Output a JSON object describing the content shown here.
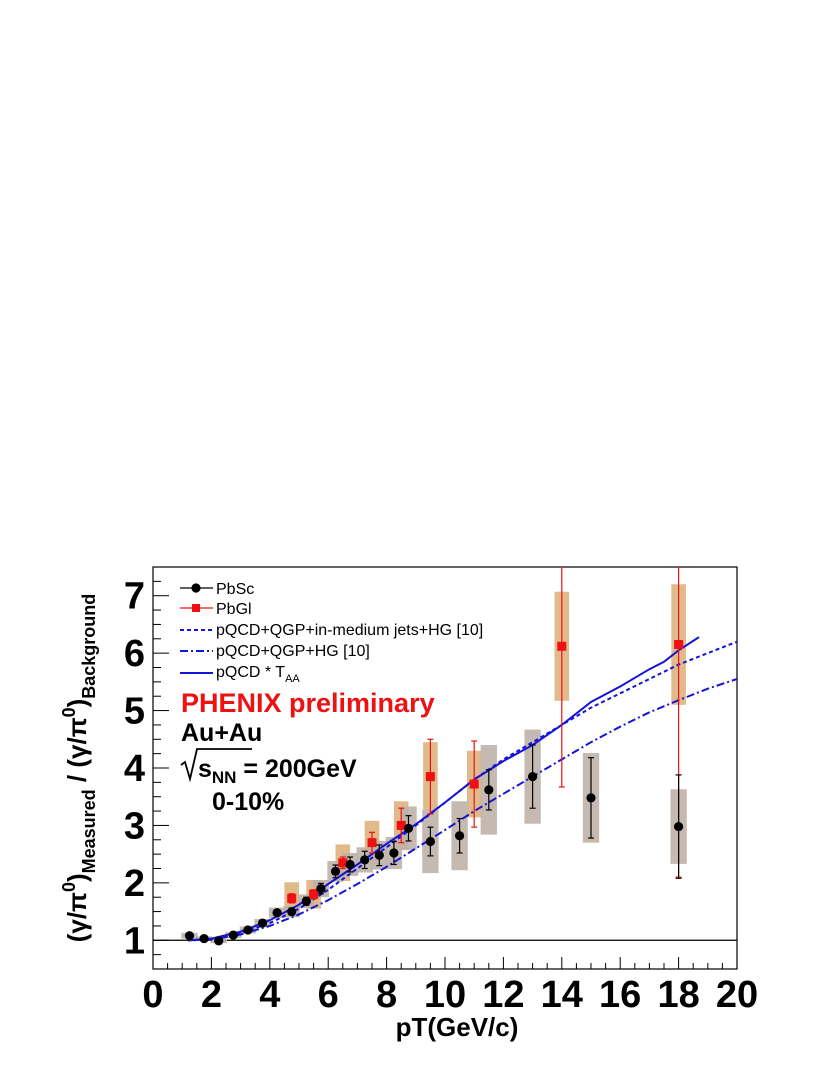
{
  "chart_data": {
    "type": "scatter",
    "xlabel": "pT(GeV/c)",
    "ylabel": {
      "main": "(γ/π",
      "sup1": "0",
      "sub1": "Measured",
      "mid": " / (γ/π",
      "sup2": "0",
      "sub2": "Background"
    },
    "xlim": [
      0,
      20
    ],
    "ylim": [
      0.5,
      7.5
    ],
    "x_ticks": [
      "0",
      "2",
      "4",
      "6",
      "8",
      "10",
      "12",
      "14",
      "16",
      "18",
      "20"
    ],
    "y_ticks": [
      "1",
      "2",
      "3",
      "4",
      "5",
      "6",
      "7"
    ],
    "reference_line_y": 1,
    "annotations": {
      "preliminary": "PHENIX preliminary",
      "system": "Au+Au",
      "sqrt_prefix": "s",
      "sqrt_sub": "NN",
      "energy": " = 200GeV",
      "centrality": "0-10%"
    },
    "legend": {
      "position": "top-left",
      "entries": [
        {
          "label": "PbSc"
        },
        {
          "label": "PbGl"
        },
        {
          "label": "pQCD+QGP+in-medium jets+HG [10]"
        },
        {
          "label": "pQCD+QGP+HG [10]"
        },
        {
          "label": "pQCD * T",
          "sub": "AA"
        }
      ]
    },
    "colors": {
      "pbsc": "#000000",
      "pbgl": "#ee1111",
      "pbsc_sys": "#bfb3a8",
      "pbgl_sys": "#ddb27e",
      "model": "#1414d8"
    },
    "series": [
      {
        "name": "PbSc",
        "marker": "circle",
        "points": [
          {
            "x": 1.25,
            "y": 1.08,
            "err": 0.03,
            "sys": 0.05
          },
          {
            "x": 1.75,
            "y": 1.03,
            "err": 0.02,
            "sys": 0.04
          },
          {
            "x": 2.25,
            "y": 0.99,
            "err": 0.02,
            "sys": 0.04
          },
          {
            "x": 2.75,
            "y": 1.09,
            "err": 0.02,
            "sys": 0.05
          },
          {
            "x": 3.25,
            "y": 1.18,
            "err": 0.03,
            "sys": 0.06
          },
          {
            "x": 3.75,
            "y": 1.3,
            "err": 0.04,
            "sys": 0.07
          },
          {
            "x": 4.25,
            "y": 1.48,
            "err": 0.05,
            "sys": 0.09
          },
          {
            "x": 4.75,
            "y": 1.5,
            "err": 0.06,
            "sys": 0.1
          },
          {
            "x": 5.25,
            "y": 1.68,
            "err": 0.07,
            "sys": 0.12
          },
          {
            "x": 5.75,
            "y": 1.9,
            "err": 0.09,
            "sys": 0.15
          },
          {
            "x": 6.25,
            "y": 2.2,
            "err": 0.11,
            "sys": 0.18
          },
          {
            "x": 6.75,
            "y": 2.32,
            "err": 0.13,
            "sys": 0.2
          },
          {
            "x": 7.25,
            "y": 2.4,
            "err": 0.15,
            "sys": 0.22
          },
          {
            "x": 7.75,
            "y": 2.48,
            "err": 0.18,
            "sys": 0.25
          },
          {
            "x": 8.25,
            "y": 2.52,
            "err": 0.2,
            "sys": 0.28
          },
          {
            "x": 8.75,
            "y": 2.95,
            "err": 0.22,
            "sys": 0.38
          },
          {
            "x": 9.5,
            "y": 2.72,
            "err": 0.25,
            "sys": 0.55
          },
          {
            "x": 10.5,
            "y": 2.82,
            "err": 0.3,
            "sys": 0.6
          },
          {
            "x": 11.5,
            "y": 3.62,
            "err": 0.35,
            "sys": 0.78
          },
          {
            "x": 13.0,
            "y": 3.85,
            "err": 0.55,
            "sys": 0.82
          },
          {
            "x": 15.0,
            "y": 3.48,
            "err": 0.7,
            "sys": 0.78
          },
          {
            "x": 18.0,
            "y": 2.98,
            "err": 0.9,
            "sys": 0.65
          }
        ]
      },
      {
        "name": "PbGl",
        "marker": "square",
        "points": [
          {
            "x": 4.75,
            "y": 1.73,
            "err": 0.08,
            "sys": 0.28
          },
          {
            "x": 5.5,
            "y": 1.8,
            "err": 0.08,
            "sys": 0.25
          },
          {
            "x": 6.5,
            "y": 2.35,
            "err": 0.1,
            "sys": 0.32
          },
          {
            "x": 7.5,
            "y": 2.7,
            "err": 0.18,
            "sys": 0.38
          },
          {
            "x": 8.5,
            "y": 3.0,
            "err": 0.3,
            "sys": 0.42
          },
          {
            "x": 9.5,
            "y": 3.85,
            "err": 0.65,
            "sys": 0.6
          },
          {
            "x": 11.0,
            "y": 3.72,
            "err": 0.75,
            "sys": 0.58
          },
          {
            "x": 14.0,
            "y": 6.12,
            "err": 2.45,
            "sys": 0.95
          },
          {
            "x": 18.0,
            "y": 6.15,
            "err": 4.05,
            "sys": 1.05
          }
        ]
      }
    ],
    "curves": [
      {
        "name": "pQCD+QGP+in-medium jets+HG [10]",
        "style": "dashed",
        "x": [
          1.2,
          2.0,
          3.0,
          4.0,
          5.0,
          6.0,
          7.0,
          8.0,
          9.0,
          10.0,
          11.0,
          12.0,
          13.0,
          14.0,
          15.0,
          16.0,
          17.0,
          18.0,
          19.0,
          20.0
        ],
        "y": [
          1.0,
          1.02,
          1.12,
          1.3,
          1.55,
          1.88,
          2.25,
          2.62,
          3.0,
          3.4,
          3.8,
          4.15,
          4.45,
          4.75,
          5.05,
          5.3,
          5.55,
          5.8,
          6.0,
          6.2
        ]
      },
      {
        "name": "pQCD+QGP+HG [10]",
        "style": "dashdot",
        "x": [
          1.2,
          2.0,
          3.0,
          4.0,
          5.0,
          6.0,
          7.0,
          8.0,
          9.0,
          10.0,
          11.0,
          12.0,
          13.0,
          14.0,
          15.0,
          16.0,
          17.0,
          18.0,
          19.0,
          20.0
        ],
        "y": [
          1.0,
          1.01,
          1.1,
          1.25,
          1.45,
          1.7,
          1.98,
          2.28,
          2.6,
          2.92,
          3.25,
          3.55,
          3.85,
          4.15,
          4.45,
          4.72,
          4.97,
          5.18,
          5.38,
          5.55
        ]
      },
      {
        "name": "pQCD * TAA",
        "style": "solid",
        "x": [
          1.2,
          2.0,
          3.0,
          4.0,
          5.0,
          6.0,
          7.0,
          8.0,
          9.0,
          10.0,
          11.0,
          12.0,
          13.0,
          14.0,
          15.0,
          16.0,
          17.0,
          17.5,
          18.0,
          18.7
        ],
        "y": [
          1.0,
          1.03,
          1.15,
          1.35,
          1.62,
          1.98,
          2.32,
          2.68,
          3.02,
          3.4,
          3.8,
          4.12,
          4.4,
          4.75,
          5.15,
          5.42,
          5.72,
          5.85,
          6.05,
          6.28
        ]
      }
    ]
  }
}
